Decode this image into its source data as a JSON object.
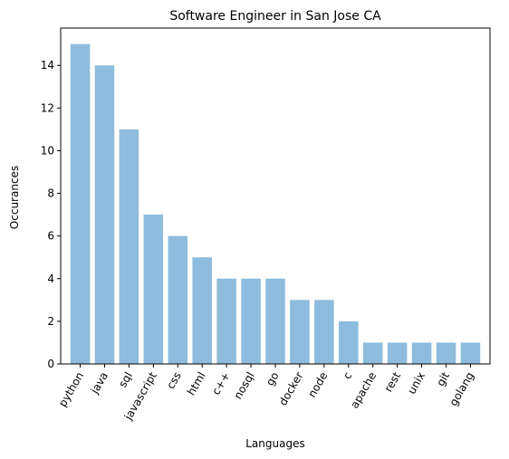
{
  "chart_data": {
    "type": "bar",
    "title": "Software Engineer in San Jose CA",
    "xlabel": "Languages",
    "ylabel": "Occurances",
    "categories": [
      "python",
      "java",
      "sql",
      "javascript",
      "css",
      "html",
      "c++",
      "nosql",
      "go",
      "docker",
      "node",
      "c",
      "apache",
      "rest",
      "unix",
      "git",
      "golang"
    ],
    "values": [
      15,
      14,
      11,
      7,
      6,
      5,
      4,
      4,
      4,
      3,
      3,
      2,
      1,
      1,
      1,
      1,
      1
    ],
    "ylim": [
      0,
      15.75
    ],
    "yticks": [
      0,
      2,
      4,
      6,
      8,
      10,
      12,
      14
    ],
    "bar_color": "#8ebcdc",
    "grid": false,
    "legend": "none"
  }
}
